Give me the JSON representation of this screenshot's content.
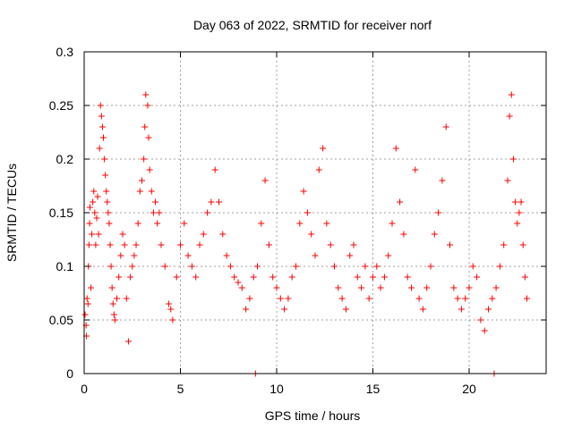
{
  "chart_data": {
    "type": "scatter",
    "title": "Day 063 of 2022, SRMTID for receiver norf",
    "xlabel": "GPS time / hours",
    "ylabel": "SRMTID / TECUs",
    "xlim": [
      0,
      24
    ],
    "ylim": [
      0,
      0.3
    ],
    "x_ticks": [
      0,
      5,
      10,
      15,
      20
    ],
    "x_tick_labels": [
      "0",
      "5",
      "10",
      "15",
      "20"
    ],
    "y_ticks": [
      0,
      0.05,
      0.1,
      0.15,
      0.2,
      0.25,
      0.3
    ],
    "y_tick_labels": [
      "0",
      "0.05",
      "0.1",
      "0.15",
      "0.2",
      "0.25",
      "0.3"
    ],
    "grid": true,
    "marker": "+",
    "color": "#ff0000",
    "series": [
      {
        "name": "SRMTID",
        "points": [
          [
            0.05,
            0.055
          ],
          [
            0.1,
            0.045
          ],
          [
            0.12,
            0.035
          ],
          [
            0.15,
            0.07
          ],
          [
            0.2,
            0.065
          ],
          [
            0.22,
            0.1
          ],
          [
            0.25,
            0.12
          ],
          [
            0.28,
            0.14
          ],
          [
            0.3,
            0.155
          ],
          [
            0.35,
            0.08
          ],
          [
            0.4,
            0.13
          ],
          [
            0.45,
            0.16
          ],
          [
            0.5,
            0.17
          ],
          [
            0.55,
            0.15
          ],
          [
            0.6,
            0.12
          ],
          [
            0.65,
            0.145
          ],
          [
            0.7,
            0.165
          ],
          [
            0.75,
            0.13
          ],
          [
            0.8,
            0.21
          ],
          [
            0.85,
            0.25
          ],
          [
            0.9,
            0.24
          ],
          [
            0.95,
            0.23
          ],
          [
            1.0,
            0.22
          ],
          [
            1.05,
            0.2
          ],
          [
            1.1,
            0.185
          ],
          [
            1.15,
            0.17
          ],
          [
            1.2,
            0.16
          ],
          [
            1.25,
            0.15
          ],
          [
            1.3,
            0.14
          ],
          [
            1.35,
            0.12
          ],
          [
            1.4,
            0.1
          ],
          [
            1.45,
            0.08
          ],
          [
            1.5,
            0.065
          ],
          [
            1.55,
            0.055
          ],
          [
            1.6,
            0.05
          ],
          [
            1.7,
            0.07
          ],
          [
            1.8,
            0.09
          ],
          [
            1.9,
            0.11
          ],
          [
            2.0,
            0.13
          ],
          [
            2.1,
            0.12
          ],
          [
            2.2,
            0.07
          ],
          [
            2.3,
            0.03
          ],
          [
            2.4,
            0.09
          ],
          [
            2.5,
            0.1
          ],
          [
            2.6,
            0.11
          ],
          [
            2.7,
            0.12
          ],
          [
            2.8,
            0.14
          ],
          [
            2.9,
            0.17
          ],
          [
            3.0,
            0.18
          ],
          [
            3.1,
            0.2
          ],
          [
            3.15,
            0.23
          ],
          [
            3.2,
            0.26
          ],
          [
            3.3,
            0.25
          ],
          [
            3.35,
            0.22
          ],
          [
            3.4,
            0.19
          ],
          [
            3.5,
            0.17
          ],
          [
            3.6,
            0.15
          ],
          [
            3.7,
            0.16
          ],
          [
            3.8,
            0.14
          ],
          [
            3.9,
            0.15
          ],
          [
            4.0,
            0.12
          ],
          [
            4.2,
            0.1
          ],
          [
            4.4,
            0.065
          ],
          [
            4.5,
            0.06
          ],
          [
            4.6,
            0.05
          ],
          [
            4.8,
            0.09
          ],
          [
            5.0,
            0.12
          ],
          [
            5.2,
            0.14
          ],
          [
            5.4,
            0.11
          ],
          [
            5.6,
            0.1
          ],
          [
            5.8,
            0.09
          ],
          [
            6.0,
            0.12
          ],
          [
            6.2,
            0.13
          ],
          [
            6.4,
            0.15
          ],
          [
            6.6,
            0.16
          ],
          [
            6.8,
            0.19
          ],
          [
            7.0,
            0.16
          ],
          [
            7.2,
            0.13
          ],
          [
            7.4,
            0.11
          ],
          [
            7.6,
            0.1
          ],
          [
            7.8,
            0.09
          ],
          [
            8.0,
            0.085
          ],
          [
            8.2,
            0.08
          ],
          [
            8.4,
            0.06
          ],
          [
            8.6,
            0.07
          ],
          [
            8.8,
            0.09
          ],
          [
            9.0,
            0.1
          ],
          [
            9.2,
            0.14
          ],
          [
            9.4,
            0.18
          ],
          [
            9.6,
            0.12
          ],
          [
            9.8,
            0.09
          ],
          [
            10.0,
            0.08
          ],
          [
            10.2,
            0.07
          ],
          [
            10.4,
            0.06
          ],
          [
            10.6,
            0.07
          ],
          [
            10.8,
            0.09
          ],
          [
            11.0,
            0.1
          ],
          [
            11.2,
            0.14
          ],
          [
            11.4,
            0.17
          ],
          [
            11.6,
            0.15
          ],
          [
            11.8,
            0.13
          ],
          [
            12.0,
            0.11
          ],
          [
            12.2,
            0.19
          ],
          [
            12.4,
            0.21
          ],
          [
            12.6,
            0.14
          ],
          [
            12.8,
            0.12
          ],
          [
            13.0,
            0.1
          ],
          [
            13.2,
            0.08
          ],
          [
            13.4,
            0.07
          ],
          [
            13.6,
            0.06
          ],
          [
            13.8,
            0.11
          ],
          [
            14.0,
            0.12
          ],
          [
            14.2,
            0.09
          ],
          [
            14.4,
            0.08
          ],
          [
            14.6,
            0.1
          ],
          [
            14.8,
            0.07
          ],
          [
            15.0,
            0.09
          ],
          [
            15.2,
            0.1
          ],
          [
            15.4,
            0.08
          ],
          [
            15.6,
            0.09
          ],
          [
            15.8,
            0.11
          ],
          [
            16.0,
            0.14
          ],
          [
            16.2,
            0.21
          ],
          [
            16.4,
            0.16
          ],
          [
            16.6,
            0.13
          ],
          [
            16.8,
            0.09
          ],
          [
            17.0,
            0.08
          ],
          [
            17.2,
            0.19
          ],
          [
            17.4,
            0.07
          ],
          [
            17.6,
            0.06
          ],
          [
            17.8,
            0.08
          ],
          [
            18.0,
            0.1
          ],
          [
            18.2,
            0.13
          ],
          [
            18.4,
            0.15
          ],
          [
            18.6,
            0.18
          ],
          [
            18.8,
            0.23
          ],
          [
            19.0,
            0.12
          ],
          [
            19.2,
            0.08
          ],
          [
            19.4,
            0.07
          ],
          [
            19.6,
            0.06
          ],
          [
            19.8,
            0.07
          ],
          [
            20.0,
            0.08
          ],
          [
            20.2,
            0.1
          ],
          [
            20.4,
            0.09
          ],
          [
            20.6,
            0.05
          ],
          [
            20.8,
            0.04
          ],
          [
            21.0,
            0.06
          ],
          [
            21.2,
            0.07
          ],
          [
            21.4,
            0.08
          ],
          [
            21.6,
            0.1
          ],
          [
            21.8,
            0.12
          ],
          [
            22.0,
            0.18
          ],
          [
            22.1,
            0.24
          ],
          [
            22.2,
            0.26
          ],
          [
            22.3,
            0.2
          ],
          [
            22.4,
            0.16
          ],
          [
            22.5,
            0.14
          ],
          [
            22.6,
            0.15
          ],
          [
            22.7,
            0.16
          ],
          [
            22.8,
            0.12
          ],
          [
            22.9,
            0.09
          ],
          [
            23.0,
            0.07
          ],
          [
            8.9,
            0.0
          ],
          [
            21.3,
            0.0
          ]
        ]
      }
    ]
  }
}
